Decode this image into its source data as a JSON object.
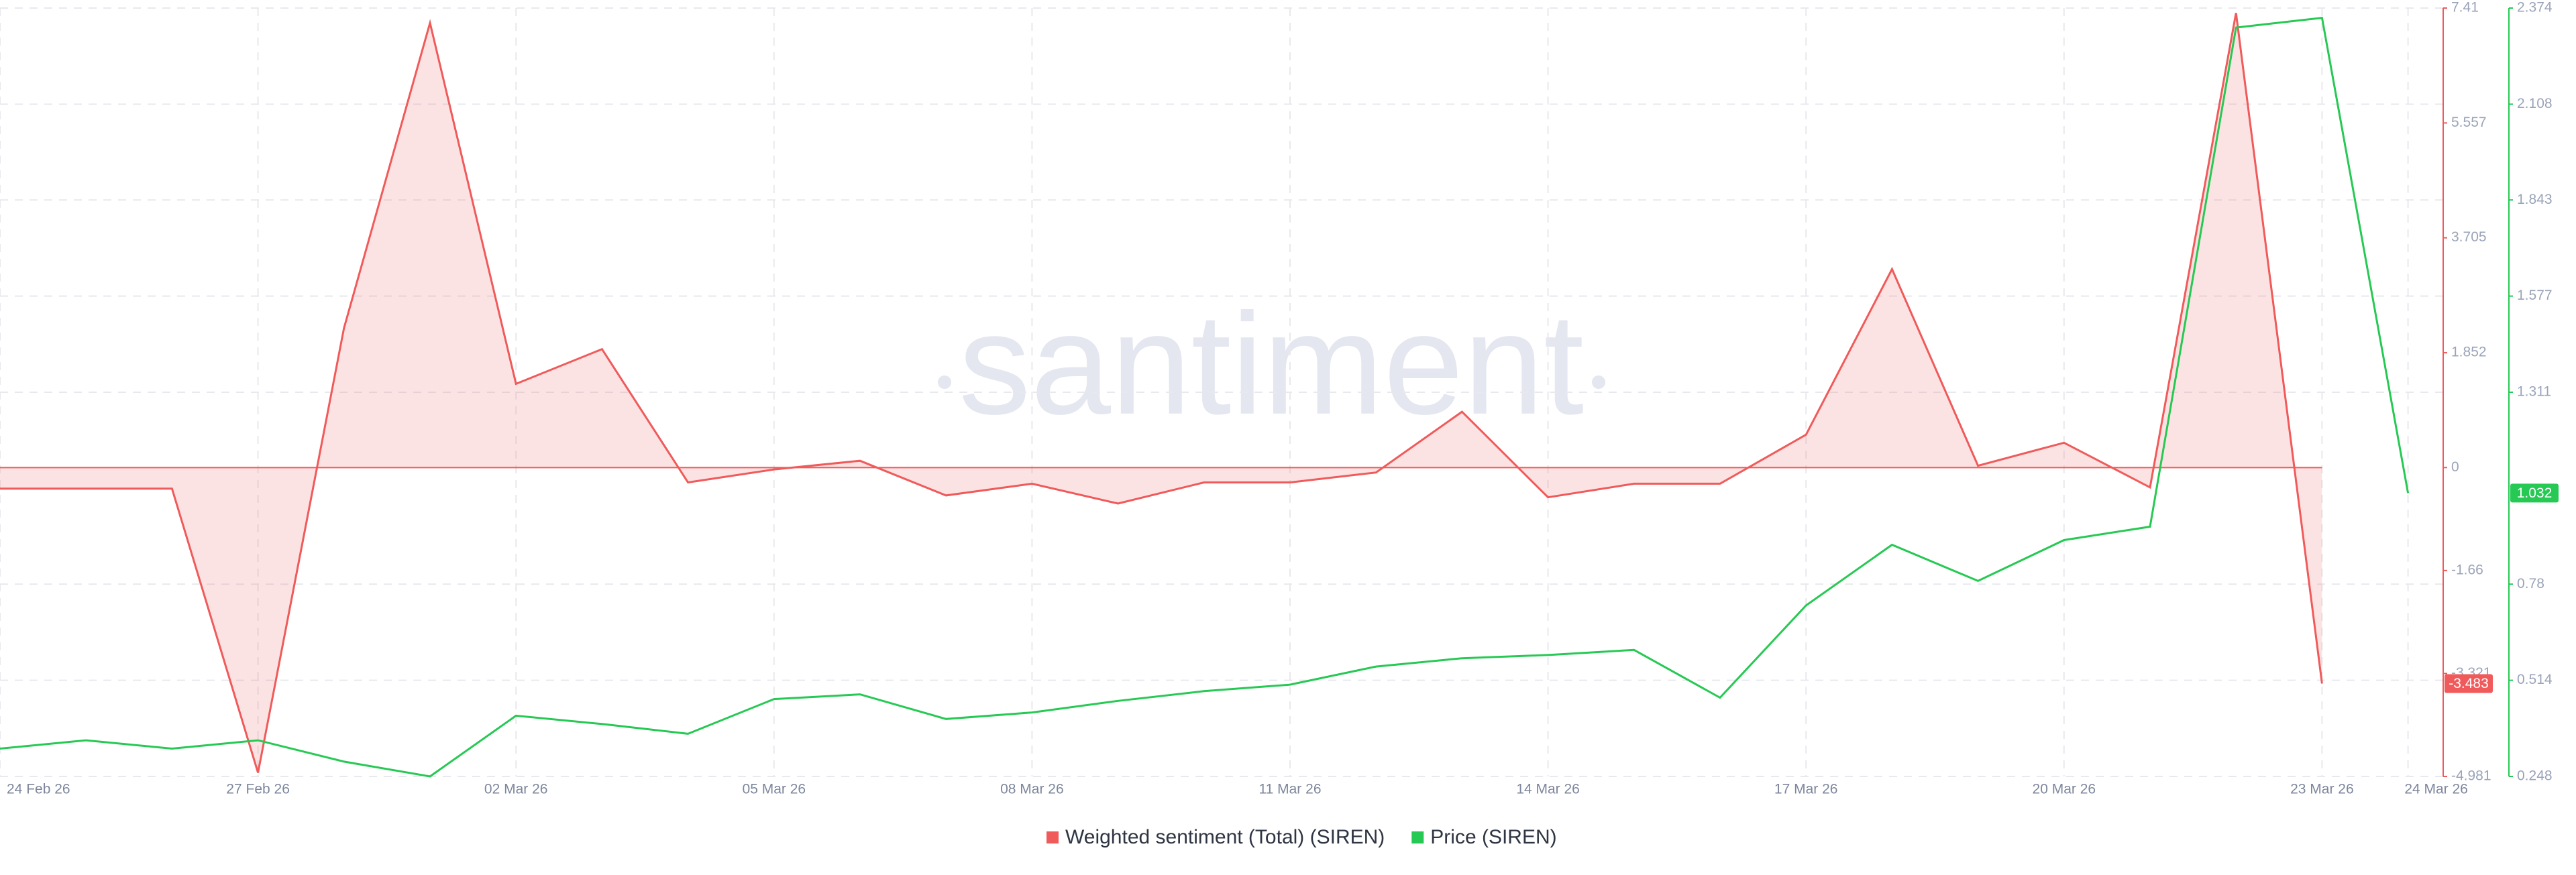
{
  "chart_data": {
    "type": "line",
    "watermark": "santiment",
    "categories": [
      "24 Feb 26",
      null,
      null,
      "27 Feb 26",
      null,
      null,
      "02 Mar 26",
      null,
      null,
      "05 Mar 26",
      null,
      null,
      "08 Mar 26",
      null,
      null,
      "11 Mar 26",
      null,
      null,
      "14 Mar 26",
      null,
      null,
      "17 Mar 26",
      null,
      null,
      "20 Mar 26",
      null,
      null,
      "23 Mar 26",
      "24 Mar 26"
    ],
    "series": [
      {
        "name": "Weighted sentiment (Total) (SIREN)",
        "color": "#f05a5a",
        "axis": "y",
        "values": [
          -0.34,
          -0.34,
          -0.34,
          -4.92,
          2.25,
          7.17,
          1.35,
          1.91,
          -0.24,
          -0.03,
          0.11,
          -0.45,
          -0.26,
          -0.58,
          -0.24,
          -0.24,
          -0.08,
          0.9,
          -0.48,
          -0.26,
          -0.26,
          0.53,
          3.2,
          0.03,
          0.4,
          -0.32,
          7.33,
          -3.483,
          null
        ]
      },
      {
        "name": "Price (SIREN)",
        "color": "#26c953",
        "axis": "y2",
        "values": [
          0.325,
          0.348,
          0.325,
          0.348,
          0.289,
          0.248,
          0.416,
          0.393,
          0.366,
          0.462,
          0.475,
          0.407,
          0.425,
          0.457,
          0.484,
          0.502,
          0.552,
          0.575,
          0.584,
          0.598,
          0.466,
          0.721,
          0.889,
          0.789,
          0.902,
          0.939,
          2.32,
          2.347,
          1.032
        ]
      }
    ],
    "ylim": [
      -4.981,
      7.41
    ],
    "yticks": [
      7.41,
      5.557,
      3.705,
      1.852,
      0,
      -1.66,
      -3.321,
      -4.981
    ],
    "y2lim": [
      0.248,
      2.374
    ],
    "y2ticks": [
      2.374,
      2.108,
      1.843,
      1.577,
      1.311,
      0.78,
      0.514,
      0.248
    ],
    "grid": true,
    "legend": "bottom"
  }
}
